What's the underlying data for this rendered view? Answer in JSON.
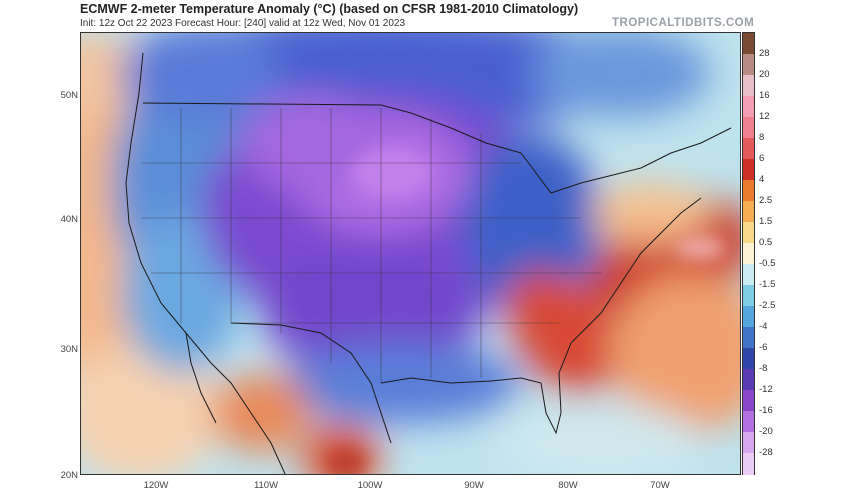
{
  "header": {
    "title": "ECMWF 2-meter Temperature Anomaly (°C) (based on CFSR 1981-2010 Climatology)",
    "subtitle": "Init: 12z Oct 22 2023   Forecast Hour: [240]   valid at 12z Wed, Nov 01 2023",
    "watermark": "TROPICALTIDBITS.COM"
  },
  "map": {
    "lat_labels": [
      "50N",
      "40N",
      "30N",
      "20N"
    ],
    "lon_labels": [
      "120W",
      "110W",
      "100W",
      "90W",
      "80W",
      "70W"
    ]
  },
  "colorbar": {
    "labels": [
      "28",
      "20",
      "16",
      "12",
      "8",
      "6",
      "4",
      "2.5",
      "1.5",
      "0.5",
      "-0.5",
      "-1.5",
      "-2.5",
      "-4",
      "-6",
      "-8",
      "-12",
      "-16",
      "-20",
      "-28"
    ],
    "colors": [
      "#7a4a32",
      "#b88e82",
      "#e7bfc8",
      "#f29fb4",
      "#f07f8f",
      "#e25a5a",
      "#cc3026",
      "#ea7a2e",
      "#f4ad52",
      "#f8d88a",
      "#fbf3d3",
      "#c8ecf0",
      "#7fcde4",
      "#55a6da",
      "#3f74c8",
      "#2f48a8",
      "#5a3ab0",
      "#8a48c8",
      "#b470e0",
      "#d6a6ee",
      "#eccbf6"
    ]
  }
}
